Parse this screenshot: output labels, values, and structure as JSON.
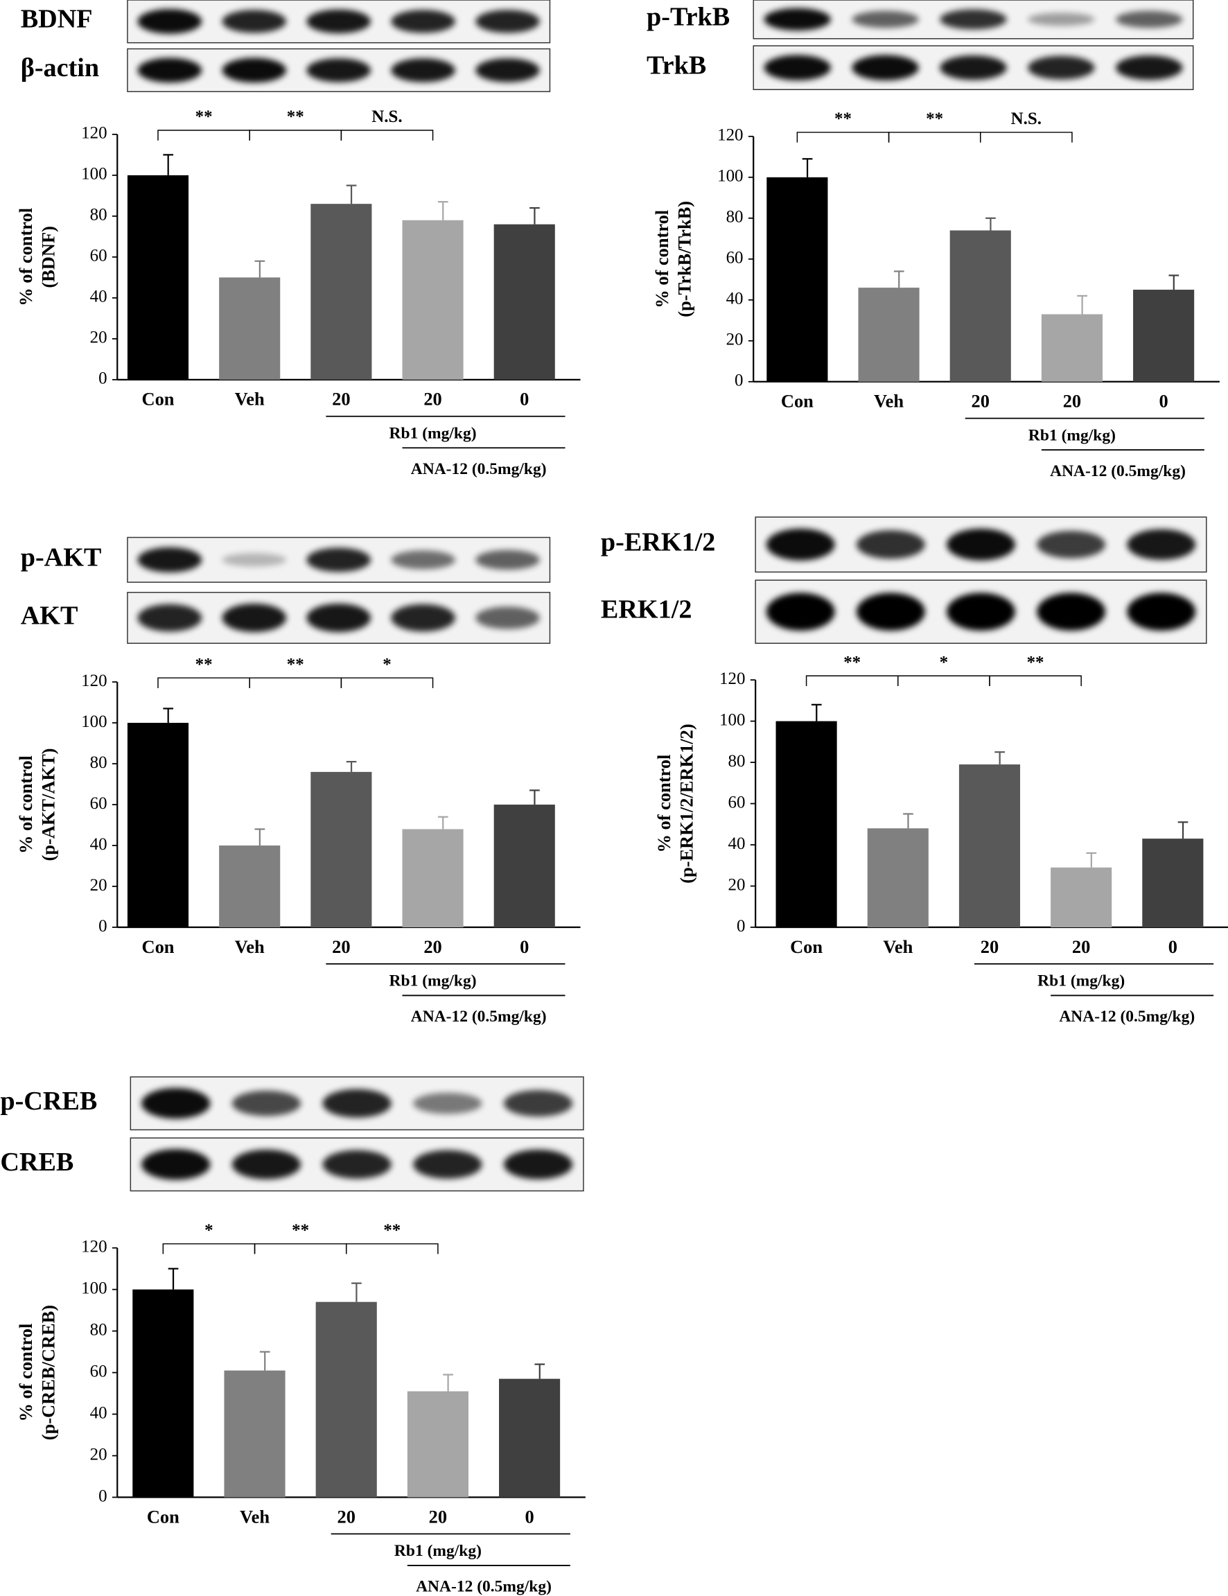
{
  "chart_data": [
    {
      "type": "bar",
      "blots": [
        "BDNF",
        "β-actin"
      ],
      "categories": [
        "Con",
        "Veh",
        "20",
        "20",
        "0"
      ],
      "values": [
        100,
        50,
        86,
        78,
        76
      ],
      "errors": [
        10,
        8,
        9,
        9,
        8
      ],
      "colors": [
        "#000000",
        "#808080",
        "#595959",
        "#a6a6a6",
        "#404040"
      ],
      "ylim": [
        0,
        120
      ],
      "yticks": [
        0,
        20,
        40,
        60,
        80,
        100,
        120
      ],
      "ylabel": [
        "% of control",
        "(BDNF)"
      ],
      "annotations": [
        "**",
        "**",
        "N.S."
      ],
      "group_labels": [
        "Rb1 (mg/kg)",
        "ANA-12 (0.5mg/kg)"
      ]
    },
    {
      "type": "bar",
      "blots": [
        "p-TrkB",
        "TrkB"
      ],
      "categories": [
        "Con",
        "Veh",
        "20",
        "20",
        "0"
      ],
      "values": [
        100,
        46,
        74,
        33,
        45
      ],
      "errors": [
        9,
        8,
        6,
        9,
        7
      ],
      "colors": [
        "#000000",
        "#808080",
        "#595959",
        "#a6a6a6",
        "#404040"
      ],
      "ylim": [
        0,
        120
      ],
      "yticks": [
        0,
        20,
        40,
        60,
        80,
        100,
        120
      ],
      "ylabel": [
        "% of control",
        "(p-TrkB/TrkB)"
      ],
      "annotations": [
        "**",
        "**",
        "N.S."
      ],
      "group_labels": [
        "Rb1 (mg/kg)",
        "ANA-12 (0.5mg/kg)"
      ]
    },
    {
      "type": "bar",
      "blots": [
        "p-AKT",
        "AKT"
      ],
      "categories": [
        "Con",
        "Veh",
        "20",
        "20",
        "0"
      ],
      "values": [
        100,
        40,
        76,
        48,
        60
      ],
      "errors": [
        7,
        8,
        5,
        6,
        7
      ],
      "colors": [
        "#000000",
        "#808080",
        "#595959",
        "#a6a6a6",
        "#404040"
      ],
      "ylim": [
        0,
        120
      ],
      "yticks": [
        0,
        20,
        40,
        60,
        80,
        100,
        120
      ],
      "ylabel": [
        "% of control",
        "(p-AKT/AKT)"
      ],
      "annotations": [
        "**",
        "**",
        "*"
      ],
      "group_labels": [
        "Rb1 (mg/kg)",
        "ANA-12 (0.5mg/kg)"
      ]
    },
    {
      "type": "bar",
      "blots": [
        "p-ERK1/2",
        "ERK1/2"
      ],
      "categories": [
        "Con",
        "Veh",
        "20",
        "20",
        "0"
      ],
      "values": [
        100,
        48,
        79,
        29,
        43
      ],
      "errors": [
        8,
        7,
        6,
        7,
        8
      ],
      "colors": [
        "#000000",
        "#808080",
        "#595959",
        "#a6a6a6",
        "#404040"
      ],
      "ylim": [
        0,
        120
      ],
      "yticks": [
        0,
        20,
        40,
        60,
        80,
        100,
        120
      ],
      "ylabel": [
        "% of control",
        "(p-ERK1/2/ERK1/2)"
      ],
      "annotations": [
        "**",
        "*",
        "**"
      ],
      "group_labels": [
        "Rb1 (mg/kg)",
        "ANA-12 (0.5mg/kg)"
      ]
    },
    {
      "type": "bar",
      "blots": [
        "p-CREB",
        "CREB"
      ],
      "categories": [
        "Con",
        "Veh",
        "20",
        "20",
        "0"
      ],
      "values": [
        100,
        61,
        94,
        51,
        57
      ],
      "errors": [
        10,
        9,
        9,
        8,
        7
      ],
      "colors": [
        "#000000",
        "#808080",
        "#595959",
        "#a6a6a6",
        "#404040"
      ],
      "ylim": [
        0,
        120
      ],
      "yticks": [
        0,
        20,
        40,
        60,
        80,
        100,
        120
      ],
      "ylabel": [
        "% of control",
        "(p-CREB/CREB)"
      ],
      "annotations": [
        "*",
        "**",
        "**"
      ],
      "group_labels": [
        "Rb1 (mg/kg)",
        "ANA-12 (0.5mg/kg)"
      ]
    }
  ]
}
